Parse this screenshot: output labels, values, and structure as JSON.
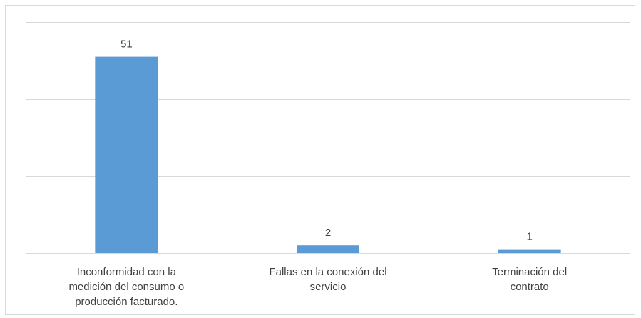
{
  "chart_data": {
    "type": "bar",
    "categories": [
      [
        "Inconformidad con la",
        "medición del consumo o",
        "producción facturado."
      ],
      [
        "Fallas en la conexión del",
        "servicio"
      ],
      [
        "Terminación del",
        "contrato"
      ]
    ],
    "values": [
      51,
      2,
      1
    ],
    "data_labels": [
      "51",
      "2",
      "1"
    ],
    "title": "",
    "xlabel": "",
    "ylabel": "",
    "ylim": [
      0,
      60
    ],
    "y_gridlines": [
      0,
      10,
      20,
      30,
      40,
      50,
      60
    ],
    "grid": true,
    "legend": "none",
    "bar_color": "#5b9bd5",
    "grid_color": "#d9d9d9",
    "text_color": "#404040"
  }
}
